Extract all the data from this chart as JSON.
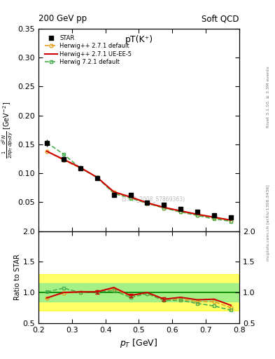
{
  "title_main": "pT(K⁺)",
  "header_left": "200 GeV pp",
  "header_right": "Soft QCD",
  "ylabel_ratio": "Ratio to STAR",
  "watermark": "(STAR_2008_S7869363)",
  "right_label_top": "Rivet 3.1.10, ≥ 3.3M events",
  "right_label_bottom": "mcplots.cern.ch [arXiv:1306.3436]",
  "star_x": [
    0.225,
    0.275,
    0.325,
    0.375,
    0.425,
    0.475,
    0.525,
    0.575,
    0.625,
    0.675,
    0.725,
    0.775
  ],
  "star_y": [
    0.152,
    0.124,
    0.109,
    0.092,
    0.063,
    0.062,
    0.049,
    0.046,
    0.038,
    0.033,
    0.027,
    0.024
  ],
  "star_yerr": [
    0.006,
    0.005,
    0.004,
    0.003,
    0.003,
    0.003,
    0.002,
    0.002,
    0.002,
    0.002,
    0.001,
    0.001
  ],
  "hw271_x": [
    0.225,
    0.275,
    0.325,
    0.375,
    0.425,
    0.475,
    0.525,
    0.575,
    0.625,
    0.675,
    0.725,
    0.775
  ],
  "hw271_y": [
    0.138,
    0.123,
    0.109,
    0.093,
    0.067,
    0.058,
    0.048,
    0.04,
    0.034,
    0.028,
    0.023,
    0.018
  ],
  "hw271_color": "#e6a020",
  "hw271ue_x": [
    0.225,
    0.275,
    0.325,
    0.375,
    0.425,
    0.475,
    0.525,
    0.575,
    0.625,
    0.675,
    0.725,
    0.775
  ],
  "hw271ue_y": [
    0.138,
    0.124,
    0.11,
    0.093,
    0.068,
    0.059,
    0.049,
    0.041,
    0.035,
    0.029,
    0.024,
    0.019
  ],
  "hw271ue_color": "#cc0000",
  "hw721_x": [
    0.225,
    0.275,
    0.325,
    0.375,
    0.425,
    0.475,
    0.525,
    0.575,
    0.625,
    0.675,
    0.725,
    0.775
  ],
  "hw721_y": [
    0.153,
    0.133,
    0.109,
    0.093,
    0.065,
    0.057,
    0.048,
    0.04,
    0.033,
    0.027,
    0.021,
    0.017
  ],
  "hw721_color": "#4caf50",
  "ratio_hw271_y": [
    0.91,
    0.99,
    1.0,
    1.01,
    1.06,
    0.94,
    0.98,
    0.87,
    0.89,
    0.85,
    0.85,
    0.75
  ],
  "ratio_hw271ue_y": [
    0.91,
    1.0,
    1.01,
    1.01,
    1.08,
    0.95,
    1.0,
    0.89,
    0.92,
    0.88,
    0.89,
    0.79
  ],
  "ratio_hw721_y": [
    1.01,
    1.07,
    1.0,
    1.01,
    1.03,
    0.92,
    0.98,
    0.87,
    0.87,
    0.82,
    0.78,
    0.71
  ],
  "band_yellow_lo": 0.5,
  "band_yellow_hi": 2.0,
  "band_green_lo": 0.5,
  "band_green_hi": 2.0,
  "xlim": [
    0.2,
    0.8
  ],
  "ylim_main": [
    0.0,
    0.35
  ],
  "ylim_ratio": [
    0.5,
    2.0
  ],
  "yticks_main": [
    0.05,
    0.1,
    0.15,
    0.2,
    0.25,
    0.3,
    0.35
  ],
  "yticks_ratio": [
    0.5,
    1.0,
    1.5,
    2.0
  ],
  "xticks": [
    0.2,
    0.3,
    0.4,
    0.5,
    0.6,
    0.7,
    0.8
  ]
}
